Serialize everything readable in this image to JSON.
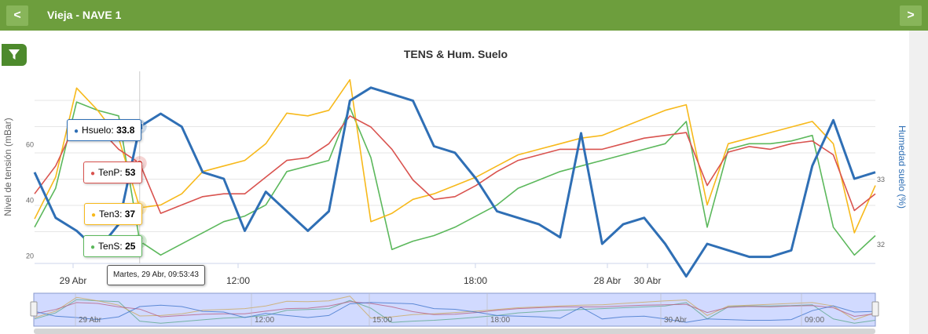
{
  "header": {
    "title": "Vieja - NAVE 1",
    "prev_label": "<",
    "next_label": ">"
  },
  "colors": {
    "hsuelo": "#2f6fb5",
    "tenp": "#d9534f",
    "ten3": "#f7b91b",
    "tens": "#5cb85c",
    "header": "#6d9e3d"
  },
  "chart_data": {
    "type": "line",
    "title": "TENS & Hum. Suelo",
    "ylabel": "Nivel de tensión (mBar)",
    "y2label": "Humedad suelo (%)",
    "ylim": [
      17,
      86
    ],
    "y_ticks": [
      20,
      40,
      60
    ],
    "y2_ticks": [
      32,
      33
    ],
    "x_ticks": [
      "29 Abr",
      "12:00",
      "18:00",
      "28 Abr",
      "30 Abr"
    ],
    "navigator_ticks": [
      "29 Abr",
      "12:00",
      "15:00",
      "18:00",
      "30 Abr",
      "09:00"
    ],
    "grid": true,
    "legend": "none",
    "x": [
      0,
      3,
      6,
      9,
      12,
      15,
      18,
      21,
      24,
      27,
      30,
      33,
      36,
      39,
      42,
      45,
      48,
      51,
      54,
      57,
      60,
      63,
      66,
      69,
      72,
      75,
      78,
      81,
      84,
      87,
      90,
      93,
      96,
      99,
      102,
      105,
      108,
      111,
      114,
      117,
      120
    ],
    "series": [
      {
        "name": "Hsuelo",
        "axis": "right",
        "values": [
          33.1,
          32.4,
          32.2,
          31.9,
          32.3,
          33.8,
          34.0,
          33.8,
          33.1,
          33.0,
          32.2,
          32.8,
          32.5,
          32.2,
          32.5,
          34.2,
          34.4,
          34.3,
          34.2,
          33.5,
          33.4,
          33.0,
          32.5,
          32.4,
          32.3,
          32.1,
          33.7,
          32.0,
          32.3,
          32.4,
          32.0,
          31.5,
          32.0,
          31.9,
          31.8,
          31.8,
          31.9,
          33.2,
          33.9,
          33.0,
          33.1
        ]
      },
      {
        "name": "TenP",
        "values": [
          42,
          52,
          68,
          66,
          58,
          53,
          35,
          38,
          41,
          42,
          42,
          48,
          54,
          55,
          60,
          70,
          66,
          58,
          47,
          40,
          41,
          45,
          50,
          54,
          56,
          58,
          58,
          58,
          60,
          62,
          63,
          64,
          45,
          57,
          59,
          58,
          60,
          61,
          56,
          36,
          42
        ]
      },
      {
        "name": "Ten3",
        "values": [
          33,
          48,
          80,
          72,
          62,
          37,
          38,
          42,
          50,
          52,
          54,
          60,
          71,
          70,
          72,
          83,
          32,
          35,
          40,
          42,
          45,
          48,
          52,
          56,
          58,
          60,
          62,
          63,
          66,
          69,
          72,
          74,
          38,
          60,
          62,
          64,
          66,
          68,
          60,
          28,
          45
        ]
      },
      {
        "name": "TenS",
        "values": [
          30,
          44,
          75,
          72,
          70,
          25,
          20,
          24,
          28,
          32,
          34,
          38,
          50,
          52,
          54,
          73,
          55,
          22,
          25,
          27,
          30,
          34,
          38,
          44,
          47,
          50,
          52,
          54,
          56,
          58,
          60,
          68,
          30,
          58,
          60,
          60,
          61,
          63,
          30,
          20,
          27
        ]
      }
    ],
    "tooltip": {
      "date": "Martes, 29 Abr, 09:53:43",
      "items": [
        {
          "name": "Hsuelo",
          "value": "33.8"
        },
        {
          "name": "TenP",
          "value": "53"
        },
        {
          "name": "Ten3",
          "value": "37"
        },
        {
          "name": "TenS",
          "value": "25"
        }
      ]
    }
  }
}
